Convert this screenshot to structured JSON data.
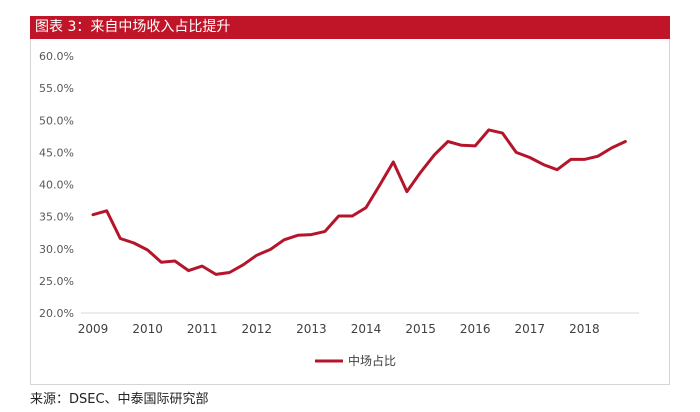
{
  "header": {
    "title": "图表 3：来自中场收入占比提升"
  },
  "footer": {
    "source": "来源：DSEC、中泰国际研究部"
  },
  "colors": {
    "accent": "#c01528",
    "line": "#b5152b",
    "axis": "#d9d9d9"
  },
  "chart_data": {
    "type": "line",
    "title": "图表 3：来自中场收入占比提升",
    "xlabel": "",
    "ylabel": "",
    "ylim": [
      20,
      60
    ],
    "yticks": [
      20,
      25,
      30,
      35,
      40,
      45,
      50,
      55,
      60
    ],
    "ytick_labels": [
      "20.0%",
      "25.0%",
      "30.0%",
      "35.0%",
      "40.0%",
      "45.0%",
      "50.0%",
      "55.0%",
      "60.0%"
    ],
    "xlim": [
      2009,
      2019
    ],
    "xticks": [
      2009,
      2010,
      2011,
      2012,
      2013,
      2014,
      2015,
      2016,
      2017,
      2018
    ],
    "xtick_labels": [
      "2009",
      "2010",
      "2011",
      "2012",
      "2013",
      "2014",
      "2015",
      "2016",
      "2017",
      "2018"
    ],
    "legend": "bottom-center",
    "grid": false,
    "series": [
      {
        "name": "中场占比",
        "x": [
          2009.0,
          2009.25,
          2009.5,
          2009.75,
          2010.0,
          2010.25,
          2010.5,
          2010.75,
          2011.0,
          2011.25,
          2011.5,
          2011.75,
          2012.0,
          2012.25,
          2012.5,
          2012.75,
          2013.0,
          2013.25,
          2013.5,
          2013.75,
          2014.0,
          2014.25,
          2014.5,
          2014.75,
          2015.0,
          2015.25,
          2015.5,
          2015.75,
          2016.0,
          2016.25,
          2016.5,
          2016.75,
          2017.0,
          2017.25,
          2017.5,
          2017.75,
          2018.0,
          2018.25,
          2018.5,
          2018.75
        ],
        "values": [
          35.3,
          35.9,
          31.6,
          30.9,
          29.8,
          27.9,
          28.1,
          26.6,
          27.3,
          26.0,
          26.3,
          27.5,
          29.0,
          29.9,
          31.4,
          32.1,
          32.2,
          32.7,
          35.1,
          35.1,
          36.4,
          39.9,
          43.5,
          38.9,
          41.9,
          44.6,
          46.7,
          46.1,
          46.0,
          48.5,
          48.0,
          45.0,
          44.2,
          43.1,
          42.3,
          43.9,
          43.9,
          44.4,
          45.7,
          46.7
        ]
      }
    ]
  }
}
